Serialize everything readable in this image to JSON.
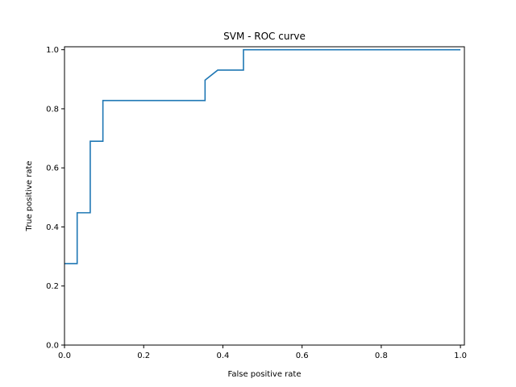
{
  "chart_data": {
    "type": "line",
    "title": "SVM - ROC curve",
    "xlabel": "False positive rate",
    "ylabel": "True positive rate",
    "xlim": [
      0,
      1.01
    ],
    "ylim": [
      0,
      1.01
    ],
    "grid": false,
    "x_ticks": [
      "0.0",
      "0.2",
      "0.4",
      "0.6",
      "0.8",
      "1.0"
    ],
    "y_ticks": [
      "0.0",
      "0.2",
      "0.4",
      "0.6",
      "0.8",
      "1.0"
    ],
    "series": [
      {
        "color": "#1f77b4",
        "x": [
          0.0,
          0.032,
          0.032,
          0.065,
          0.065,
          0.097,
          0.097,
          0.355,
          0.355,
          0.387,
          0.452,
          0.452,
          1.0
        ],
        "y": [
          0.276,
          0.276,
          0.448,
          0.448,
          0.69,
          0.69,
          0.828,
          0.828,
          0.897,
          0.931,
          0.931,
          1.0,
          1.0
        ]
      }
    ]
  }
}
